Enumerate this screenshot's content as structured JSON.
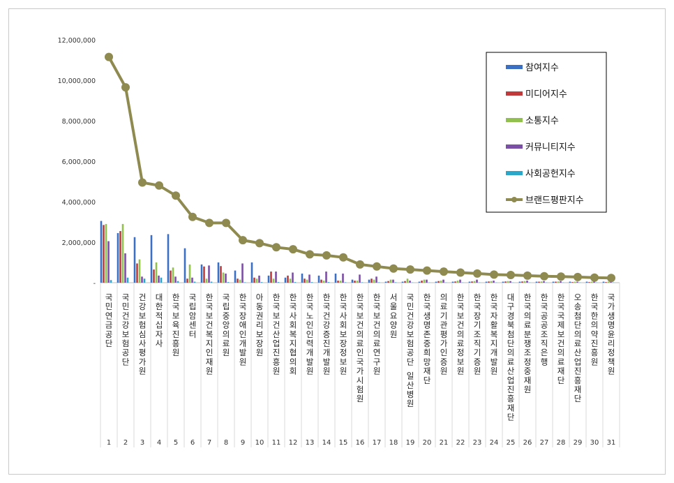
{
  "chart_data": {
    "type": "bar",
    "title": "",
    "xlabel": "",
    "ylabel": "",
    "ylim": [
      0,
      12000000
    ],
    "yticks": [
      0,
      2000000,
      4000000,
      6000000,
      8000000,
      10000000,
      12000000
    ],
    "ytick_labels": [
      "-",
      "2,000,000",
      "4,000,000",
      "6,000,000",
      "8,000,000",
      "10,000,000",
      "12,000,000"
    ],
    "grid": false,
    "legend_position": "top-right",
    "ranks": [
      "1",
      "2",
      "3",
      "4",
      "5",
      "6",
      "7",
      "8",
      "9",
      "10",
      "11",
      "12",
      "13",
      "14",
      "15",
      "16",
      "17",
      "18",
      "19",
      "20",
      "21",
      "22",
      "23",
      "24",
      "25",
      "26",
      "27",
      "28",
      "29",
      "30",
      "31"
    ],
    "categories": [
      "국민연금공단",
      "국민건강보험공단",
      "건강보험심사평가원",
      "대한적십자사",
      "한국보육진흥원",
      "국립암센터",
      "한국보건복지인재원",
      "국립중앙의료원",
      "한국장애인개발원",
      "아동권리보장원",
      "한국보건산업진흥원",
      "한국사회복지협의회",
      "한국노인인력개발원",
      "한국건강증진개발원",
      "한국사회보장정보원",
      "한국보건의료인국가시험원",
      "한국보건의료연구원",
      "서울요양원",
      "국민건강보험공단 일산병원",
      "한국생명존중희망재단",
      "의료기관평가인증원",
      "한국보건의료정보원",
      "한국장기조직기증원",
      "한국자활복지개발원",
      "대구경북첨단의료산업진흥재단",
      "한국의료분쟁조정중재원",
      "한국공공조직은행",
      "한국국제보건의료재단",
      "오송첨단의료산업진흥재단",
      "한국한의약진흥원",
      "국가생명윤리정책원"
    ],
    "series": [
      {
        "name": "참여지수",
        "color": "#3a6fc4",
        "type": "bar",
        "values": [
          3050000,
          2450000,
          2250000,
          2350000,
          2400000,
          1700000,
          900000,
          1000000,
          600000,
          1000000,
          350000,
          250000,
          450000,
          350000,
          450000,
          150000,
          150000,
          50000,
          50000,
          50000,
          50000,
          50000,
          50000,
          50000,
          50000,
          50000,
          50000,
          50000,
          50000,
          50000,
          50000
        ]
      },
      {
        "name": "미디어지수",
        "color": "#c0393b",
        "type": "bar",
        "values": [
          2850000,
          2550000,
          950000,
          650000,
          600000,
          200000,
          800000,
          820000,
          200000,
          250000,
          550000,
          350000,
          200000,
          150000,
          100000,
          100000,
          200000,
          80000,
          80000,
          100000,
          80000,
          60000,
          60000,
          60000,
          60000,
          60000,
          50000,
          50000,
          30000,
          30000,
          30000
        ]
      },
      {
        "name": "소통지수",
        "color": "#92c050",
        "type": "bar",
        "values": [
          2900000,
          2900000,
          1150000,
          1000000,
          750000,
          900000,
          200000,
          500000,
          150000,
          200000,
          200000,
          200000,
          150000,
          100000,
          100000,
          100000,
          150000,
          150000,
          200000,
          150000,
          100000,
          100000,
          80000,
          80000,
          80000,
          80000,
          60000,
          60000,
          50000,
          50000,
          50000
        ]
      },
      {
        "name": "커뮤니티지수",
        "color": "#7b4fa5",
        "type": "bar",
        "values": [
          2050000,
          1450000,
          300000,
          350000,
          300000,
          250000,
          850000,
          450000,
          950000,
          350000,
          550000,
          500000,
          400000,
          550000,
          450000,
          400000,
          300000,
          150000,
          100000,
          150000,
          150000,
          150000,
          150000,
          100000,
          80000,
          100000,
          80000,
          80000,
          50000,
          50000,
          50000
        ]
      },
      {
        "name": "사회공헌지수",
        "color": "#2aa7c9",
        "type": "bar",
        "values": [
          130000,
          250000,
          200000,
          250000,
          80000,
          50000,
          50000,
          30000,
          20000,
          30000,
          30000,
          30000,
          30000,
          30000,
          20000,
          20000,
          20000,
          20000,
          10000,
          10000,
          10000,
          10000,
          10000,
          10000,
          10000,
          10000,
          10000,
          10000,
          10000,
          10000,
          10000
        ]
      },
      {
        "name": "브랜드평판지수",
        "color": "#8e8a50",
        "type": "line",
        "values": [
          11150000,
          9650000,
          4950000,
          4800000,
          4300000,
          3250000,
          2950000,
          2950000,
          2100000,
          1950000,
          1750000,
          1650000,
          1400000,
          1350000,
          1250000,
          900000,
          800000,
          700000,
          650000,
          600000,
          550000,
          500000,
          450000,
          400000,
          380000,
          350000,
          320000,
          300000,
          280000,
          250000,
          230000
        ]
      }
    ]
  }
}
